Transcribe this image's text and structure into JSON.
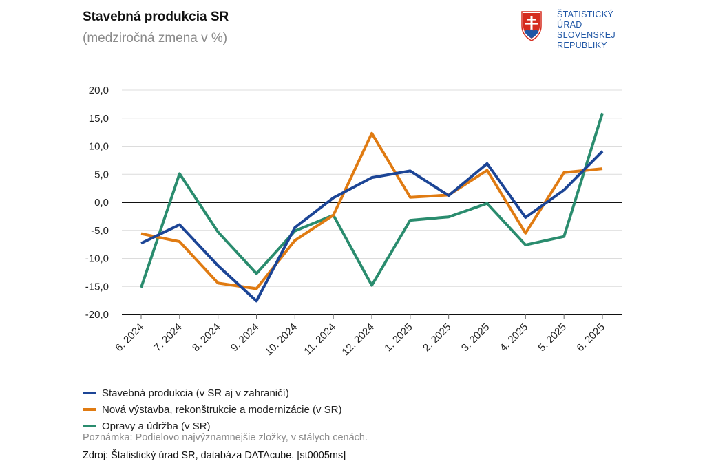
{
  "header": {
    "title": "Stavebná produkcia SR",
    "subtitle": "(medziročná zmena v %)"
  },
  "logo": {
    "lines": [
      "ŠTATISTICKÝ",
      "ÚRAD",
      "SLOVENSKEJ",
      "REPUBLIKY"
    ],
    "color": "#1f56a5",
    "shield_colors": {
      "red": "#d52b1e",
      "blue": "#1f56a5",
      "white": "#ffffff"
    }
  },
  "chart_data": {
    "type": "line",
    "title": "Stavebná produkcia SR",
    "subtitle": "(medziročná zmena v %)",
    "xlabel": "",
    "ylabel": "",
    "ylim": [
      -20,
      20
    ],
    "yticks": [
      20,
      15,
      10,
      5,
      0,
      -5,
      -10,
      -15,
      -20
    ],
    "ytick_labels": [
      "20,0",
      "15,0",
      "10,0",
      "5,0",
      "0,0",
      "-5,0",
      "-10,0",
      "-15,0",
      "-20,0"
    ],
    "grid": true,
    "categories": [
      "6. 2024",
      "7. 2024",
      "8. 2024",
      "9. 2024",
      "10. 2024",
      "11. 2024",
      "12. 2024",
      "1. 2025",
      "2. 2025",
      "3. 2025",
      "4. 2025",
      "5. 2025",
      "6. 2025"
    ],
    "series": [
      {
        "name": "Stavebná produkcia (v SR aj v zahraničí)",
        "color": "#1c4596",
        "values": [
          -7.3,
          -4.0,
          -11.3,
          -17.6,
          -4.5,
          0.8,
          4.4,
          5.6,
          1.2,
          6.9,
          -2.7,
          2.2,
          9.1
        ]
      },
      {
        "name": "Nová výstavba, rekonštrukcie a modernizácie (v SR)",
        "color": "#e07b12",
        "values": [
          -5.6,
          -7.0,
          -14.4,
          -15.4,
          -6.8,
          -2.3,
          12.3,
          0.9,
          1.3,
          5.7,
          -5.5,
          5.3,
          6.0
        ]
      },
      {
        "name": "Opravy a údržba (v SR)",
        "color": "#2a8c6e",
        "values": [
          -15.2,
          5.1,
          -5.3,
          -12.7,
          -5.1,
          -2.3,
          -14.8,
          -3.2,
          -2.6,
          -0.2,
          -7.6,
          -6.1,
          15.9
        ]
      }
    ]
  },
  "footer": {
    "note": "Poznámka: Podielovo najvýznamnejšie zložky, v stálych cenách.",
    "source": "Zdroj: Štatistický úrad SR, databáza DATAcube. [st0005ms]"
  }
}
